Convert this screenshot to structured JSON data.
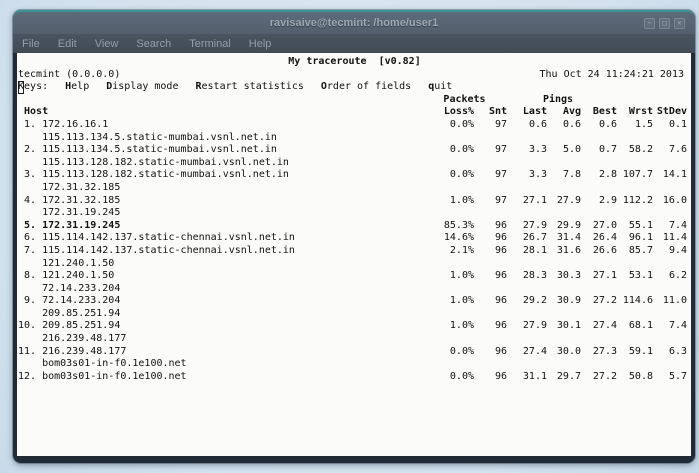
{
  "window": {
    "title": "ravisaive@tecmint: /home/user1",
    "controls": {
      "minimize": "−",
      "maximize": "□",
      "close": "✕"
    }
  },
  "menu": [
    "File",
    "Edit",
    "View",
    "Search",
    "Terminal",
    "Help"
  ],
  "terminal": {
    "app_title": "My traceroute  [v0.82]",
    "host_line": "tecmint (0.0.0.0)",
    "timestamp": "Thu Oct 24 11:24:21 2013",
    "keys": {
      "cursor": "K",
      "label_rest": "eys:",
      "items": [
        {
          "hot": "H",
          "rest": "elp"
        },
        {
          "hot": "D",
          "rest": "isplay mode"
        },
        {
          "hot": "R",
          "rest": "estart statistics"
        },
        {
          "hot": "O",
          "rest": "rder of fields"
        },
        {
          "hot": "q",
          "rest": "uit"
        }
      ]
    },
    "group_headers": {
      "packets": "Packets",
      "pings": "Pings"
    },
    "columns": {
      "host": " Host",
      "stats": [
        "Loss%",
        "Snt",
        "Last",
        "Avg",
        "Best",
        "Wrst",
        "StDev"
      ],
      "stat_keys": [
        "loss",
        "snt",
        "last",
        "avg",
        "best",
        "wrst",
        "stdev"
      ]
    },
    "rows": [
      {
        "num": " 1.",
        "host": "172.16.16.1",
        "alt": "115.113.134.5.static-mumbai.vsnl.net.in",
        "bold": false,
        "stats": [
          "0.0%",
          "97",
          "0.6",
          "0.6",
          "0.6",
          "1.5",
          "0.1"
        ]
      },
      {
        "num": " 2.",
        "host": "115.113.134.5.static-mumbai.vsnl.net.in",
        "alt": "115.113.128.182.static-mumbai.vsnl.net.in",
        "bold": false,
        "stats": [
          "0.0%",
          "97",
          "3.3",
          "5.0",
          "0.7",
          "58.2",
          "7.6"
        ]
      },
      {
        "num": " 3.",
        "host": "115.113.128.182.static-mumbai.vsnl.net.in",
        "alt": "172.31.32.185",
        "bold": false,
        "stats": [
          "0.0%",
          "97",
          "3.3",
          "7.8",
          "2.8",
          "107.7",
          "14.1"
        ]
      },
      {
        "num": " 4.",
        "host": "172.31.32.185",
        "alt": "172.31.19.245",
        "bold": false,
        "stats": [
          "1.0%",
          "97",
          "27.1",
          "27.9",
          "2.9",
          "112.2",
          "16.0"
        ]
      },
      {
        "num": " 5.",
        "host": "172.31.19.245",
        "alt": null,
        "bold": true,
        "stats": [
          "85.3%",
          "96",
          "27.9",
          "29.9",
          "27.0",
          "55.1",
          "7.4"
        ]
      },
      {
        "num": " 6.",
        "host": "115.114.142.137.static-chennai.vsnl.net.in",
        "alt": null,
        "bold": false,
        "stats": [
          "14.6%",
          "96",
          "26.7",
          "31.4",
          "26.4",
          "96.1",
          "11.4"
        ]
      },
      {
        "num": " 7.",
        "host": "115.114.142.137.static-chennai.vsnl.net.in",
        "alt": "121.240.1.50",
        "bold": false,
        "stats": [
          "2.1%",
          "96",
          "28.1",
          "31.6",
          "26.6",
          "85.7",
          "9.4"
        ]
      },
      {
        "num": " 8.",
        "host": "121.240.1.50",
        "alt": "72.14.233.204",
        "bold": false,
        "stats": [
          "1.0%",
          "96",
          "28.3",
          "30.3",
          "27.1",
          "53.1",
          "6.2"
        ]
      },
      {
        "num": " 9.",
        "host": "72.14.233.204",
        "alt": "209.85.251.94",
        "bold": false,
        "stats": [
          "1.0%",
          "96",
          "29.2",
          "30.9",
          "27.2",
          "114.6",
          "11.0"
        ]
      },
      {
        "num": "10.",
        "host": "209.85.251.94",
        "alt": "216.239.48.177",
        "bold": false,
        "stats": [
          "1.0%",
          "96",
          "27.9",
          "30.1",
          "27.4",
          "68.1",
          "7.4"
        ]
      },
      {
        "num": "11.",
        "host": "216.239.48.177",
        "alt": "bom03s01-in-f0.1e100.net",
        "bold": false,
        "stats": [
          "0.0%",
          "96",
          "27.4",
          "30.0",
          "27.3",
          "59.1",
          "6.3"
        ]
      },
      {
        "num": "12.",
        "host": "bom03s01-in-f0.1e100.net",
        "alt": null,
        "bold": false,
        "stats": [
          "0.0%",
          "96",
          "31.1",
          "29.7",
          "27.2",
          "50.8",
          "5.7"
        ]
      }
    ]
  },
  "colors": {
    "desktop_bg": "#d9e6f0",
    "titlebar_top": "#5e6b7a",
    "titlebar_bottom": "#49545f",
    "titlebar_accent": "#3a9694",
    "frame": "#212b35",
    "terminal_bg": "#fbfbfa",
    "terminal_text": "#121212",
    "menu_text": "#949ea9"
  }
}
